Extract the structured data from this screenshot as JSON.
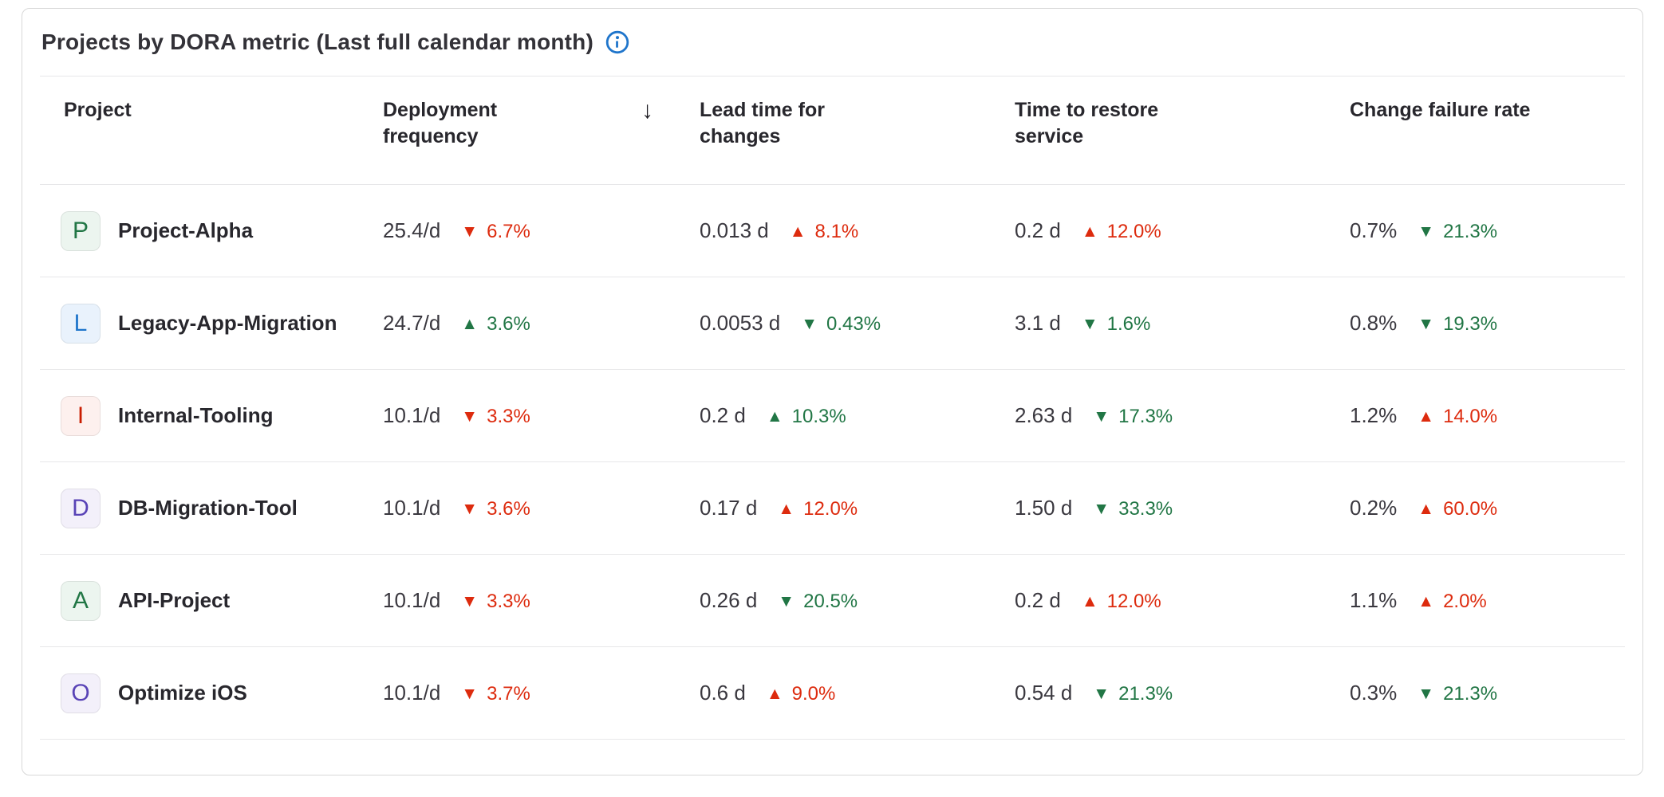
{
  "card": {
    "title": "Projects by DORA metric (Last full calendar month)",
    "info_icon_color": "#1f75cb"
  },
  "colors": {
    "positive": "#217645",
    "negative": "#dd2b0e"
  },
  "table": {
    "columns": {
      "project": "Project",
      "deployment_frequency": "Deployment frequency",
      "lead_time": "Lead time for changes",
      "time_to_restore": "Time to restore service",
      "change_failure_rate": "Change failure rate"
    },
    "sort": {
      "column": "Deployment frequency",
      "direction": "descending",
      "indicator": "↓"
    },
    "metric_keys": [
      "deployment-frequency",
      "lead-time-for-changes",
      "time-to-restore-service",
      "change-failure-rate"
    ],
    "rows": [
      {
        "avatar": {
          "letter": "P",
          "bg": "#ecf5ef",
          "color": "#217645"
        },
        "name": "Project-Alpha",
        "metrics": [
          {
            "value": "25.4/d",
            "trend": "6.7%",
            "direction": "down",
            "sentiment": "negative"
          },
          {
            "value": "0.013 d",
            "trend": "8.1%",
            "direction": "up",
            "sentiment": "negative"
          },
          {
            "value": "0.2 d",
            "trend": "12.0%",
            "direction": "up",
            "sentiment": "negative"
          },
          {
            "value": "0.7%",
            "trend": "21.3%",
            "direction": "down",
            "sentiment": "positive"
          }
        ]
      },
      {
        "avatar": {
          "letter": "L",
          "bg": "#e9f2fc",
          "color": "#1f75cb"
        },
        "name": "Legacy-App-Migration",
        "metrics": [
          {
            "value": "24.7/d",
            "trend": "3.6%",
            "direction": "up",
            "sentiment": "positive"
          },
          {
            "value": "0.0053 d",
            "trend": "0.43%",
            "direction": "down",
            "sentiment": "positive"
          },
          {
            "value": "3.1 d",
            "trend": "1.6%",
            "direction": "down",
            "sentiment": "positive"
          },
          {
            "value": "0.8%",
            "trend": "19.3%",
            "direction": "down",
            "sentiment": "positive"
          }
        ]
      },
      {
        "avatar": {
          "letter": "I",
          "bg": "#fdf0ee",
          "color": "#c91c00"
        },
        "name": "Internal-Tooling",
        "metrics": [
          {
            "value": "10.1/d",
            "trend": "3.3%",
            "direction": "down",
            "sentiment": "negative"
          },
          {
            "value": "0.2 d",
            "trend": "10.3%",
            "direction": "up",
            "sentiment": "positive"
          },
          {
            "value": "2.63 d",
            "trend": "17.3%",
            "direction": "down",
            "sentiment": "positive"
          },
          {
            "value": "1.2%",
            "trend": "14.0%",
            "direction": "up",
            "sentiment": "negative"
          }
        ]
      },
      {
        "avatar": {
          "letter": "D",
          "bg": "#f3f0fa",
          "color": "#5943b6"
        },
        "name": "DB-Migration-Tool",
        "metrics": [
          {
            "value": "10.1/d",
            "trend": "3.6%",
            "direction": "down",
            "sentiment": "negative"
          },
          {
            "value": "0.17 d",
            "trend": "12.0%",
            "direction": "up",
            "sentiment": "negative"
          },
          {
            "value": "1.50 d",
            "trend": "33.3%",
            "direction": "down",
            "sentiment": "positive"
          },
          {
            "value": "0.2%",
            "trend": "60.0%",
            "direction": "up",
            "sentiment": "negative"
          }
        ]
      },
      {
        "avatar": {
          "letter": "A",
          "bg": "#ecf5ef",
          "color": "#217645"
        },
        "name": "API-Project",
        "metrics": [
          {
            "value": "10.1/d",
            "trend": "3.3%",
            "direction": "down",
            "sentiment": "negative"
          },
          {
            "value": "0.26 d",
            "trend": "20.5%",
            "direction": "down",
            "sentiment": "positive"
          },
          {
            "value": "0.2 d",
            "trend": "12.0%",
            "direction": "up",
            "sentiment": "negative"
          },
          {
            "value": "1.1%",
            "trend": "2.0%",
            "direction": "up",
            "sentiment": "negative"
          }
        ]
      },
      {
        "avatar": {
          "letter": "O",
          "bg": "#f3f0fa",
          "color": "#5943b6"
        },
        "name": "Optimize iOS",
        "metrics": [
          {
            "value": "10.1/d",
            "trend": "3.7%",
            "direction": "down",
            "sentiment": "negative"
          },
          {
            "value": "0.6 d",
            "trend": "9.0%",
            "direction": "up",
            "sentiment": "negative"
          },
          {
            "value": "0.54 d",
            "trend": "21.3%",
            "direction": "down",
            "sentiment": "positive"
          },
          {
            "value": "0.3%",
            "trend": "21.3%",
            "direction": "down",
            "sentiment": "positive"
          }
        ]
      }
    ]
  }
}
